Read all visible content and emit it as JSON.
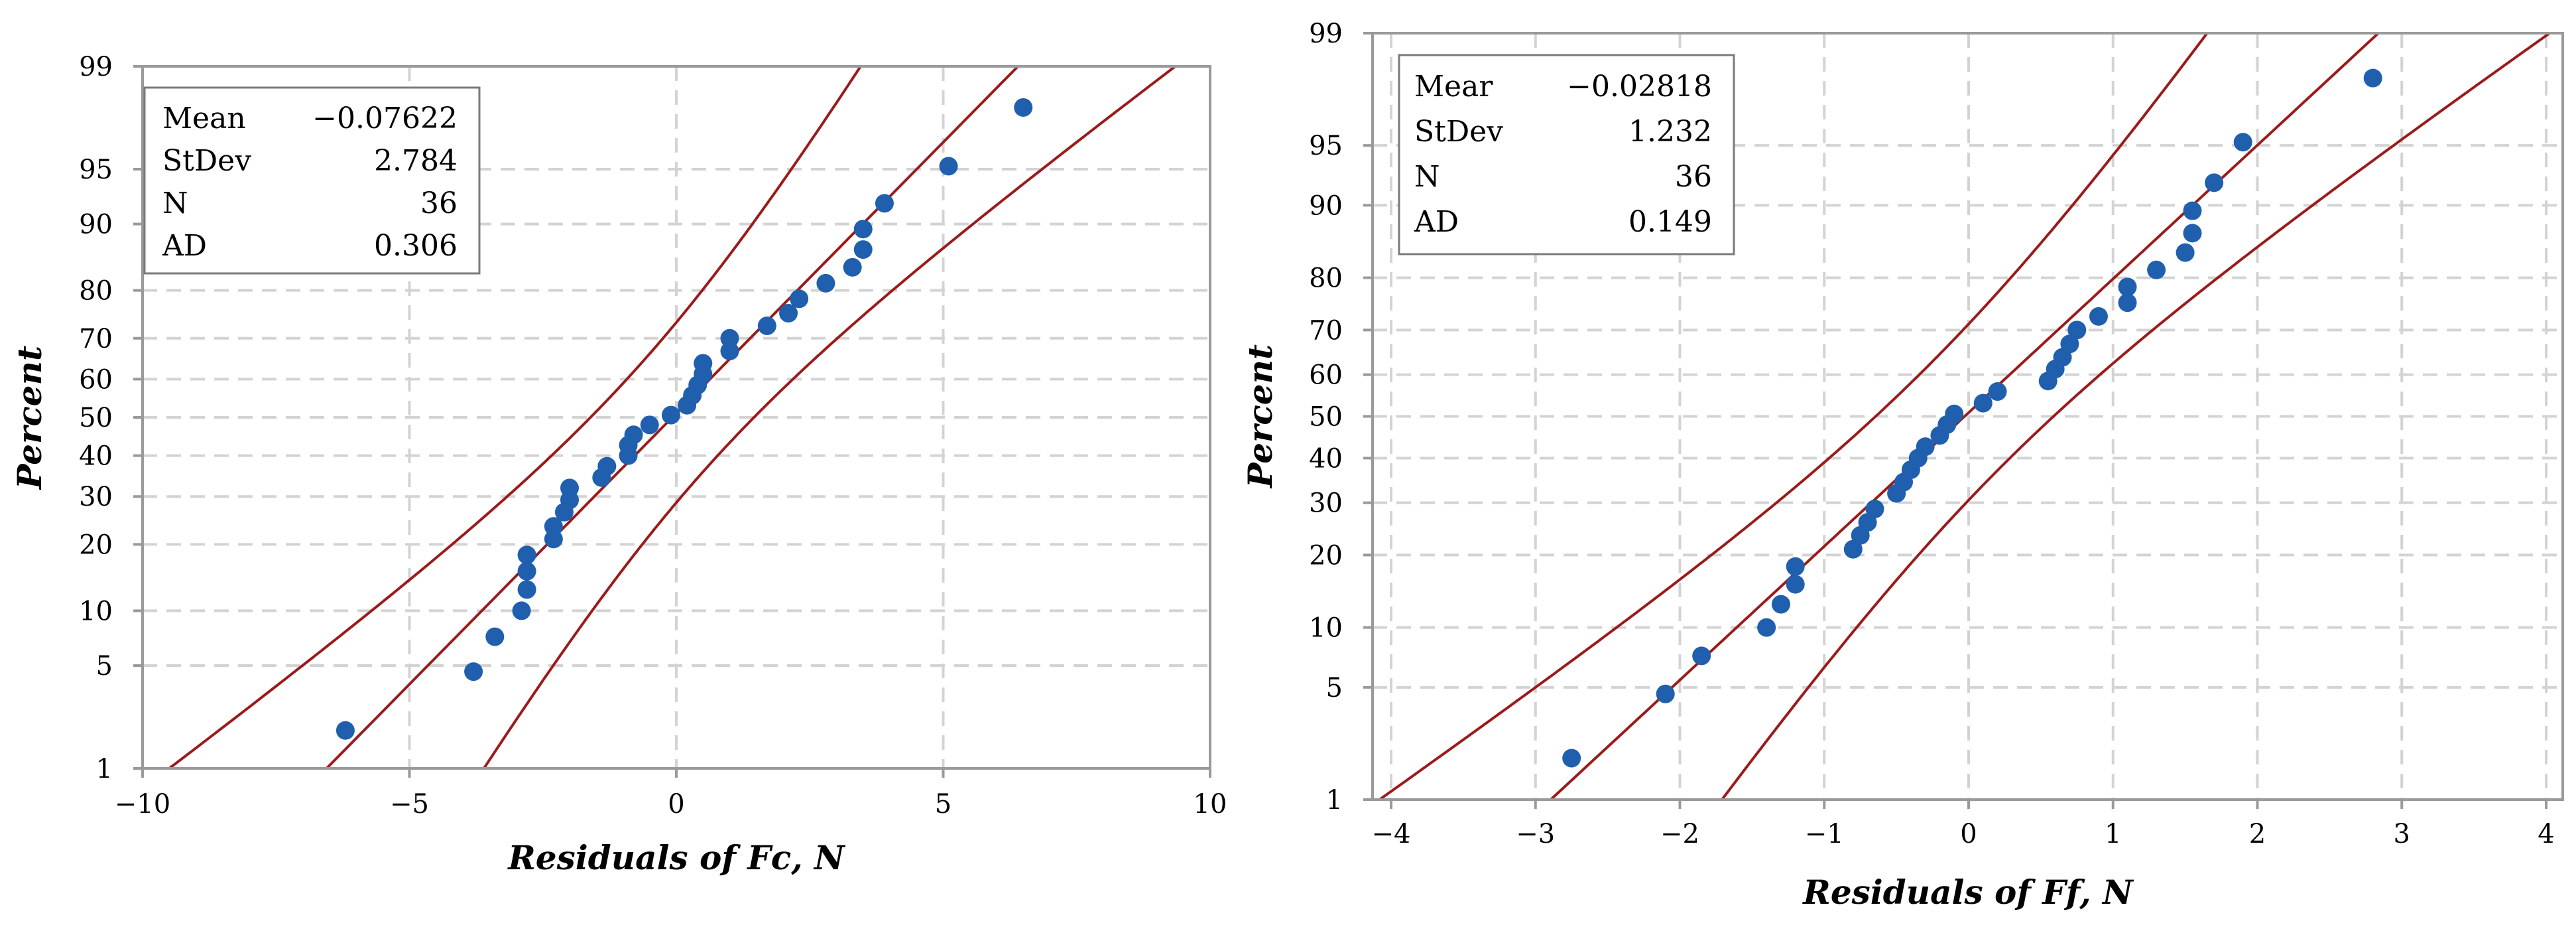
{
  "chart_data": [
    {
      "type": "scatter",
      "title": "",
      "xlabel": "Residuals of Fc, N",
      "ylabel": "Percent",
      "xlim": [
        -10,
        10
      ],
      "ylim": [
        1,
        99
      ],
      "xticks": [
        -10,
        -5,
        0,
        5,
        10
      ],
      "xtick_labels": [
        "−10",
        "−5",
        "0",
        "5",
        "10"
      ],
      "yticks": [
        1,
        5,
        10,
        20,
        30,
        40,
        50,
        60,
        70,
        80,
        90,
        95,
        99
      ],
      "grid": true,
      "legend": {
        "placement": "top-left",
        "rows": [
          {
            "label": "Mean",
            "value": "−0.07622"
          },
          {
            "label": "StDev",
            "value": "2.784"
          },
          {
            "label": "N",
            "value": "36"
          },
          {
            "label": "AD",
            "value": "0.306"
          }
        ]
      },
      "fit": {
        "mean": -0.07622,
        "sd": 2.784,
        "ci_halfwidth_sd": 0.55
      },
      "points": [
        {
          "x": -6.2,
          "y": 1.9
        },
        {
          "x": -3.8,
          "y": 4.6
        },
        {
          "x": -3.4,
          "y": 7.3
        },
        {
          "x": -2.9,
          "y": 10.0
        },
        {
          "x": -2.8,
          "y": 12.7
        },
        {
          "x": -2.8,
          "y": 15.4
        },
        {
          "x": -2.8,
          "y": 18.1
        },
        {
          "x": -2.3,
          "y": 21.0
        },
        {
          "x": -2.3,
          "y": 23.5
        },
        {
          "x": -2.1,
          "y": 26.5
        },
        {
          "x": -2.0,
          "y": 29.2
        },
        {
          "x": -2.0,
          "y": 32.0
        },
        {
          "x": -1.4,
          "y": 34.5
        },
        {
          "x": -1.3,
          "y": 37.3
        },
        {
          "x": -0.9,
          "y": 40.0
        },
        {
          "x": -0.9,
          "y": 42.7
        },
        {
          "x": -0.8,
          "y": 45.4
        },
        {
          "x": -0.5,
          "y": 48.0
        },
        {
          "x": -0.1,
          "y": 50.6
        },
        {
          "x": 0.2,
          "y": 53.2
        },
        {
          "x": 0.3,
          "y": 55.8
        },
        {
          "x": 0.4,
          "y": 58.5
        },
        {
          "x": 0.5,
          "y": 61.3
        },
        {
          "x": 0.5,
          "y": 64.0
        },
        {
          "x": 1.0,
          "y": 67.0
        },
        {
          "x": 1.0,
          "y": 70.0
        },
        {
          "x": 1.7,
          "y": 72.8
        },
        {
          "x": 2.1,
          "y": 75.5
        },
        {
          "x": 2.3,
          "y": 78.4
        },
        {
          "x": 2.8,
          "y": 81.3
        },
        {
          "x": 3.3,
          "y": 84.0
        },
        {
          "x": 3.5,
          "y": 86.7
        },
        {
          "x": 3.5,
          "y": 89.4
        },
        {
          "x": 3.9,
          "y": 92.2
        },
        {
          "x": 5.1,
          "y": 95.2
        },
        {
          "x": 6.5,
          "y": 98.0
        }
      ]
    },
    {
      "type": "scatter",
      "title": "",
      "xlabel": "Residuals of  Ff, N",
      "ylabel": "Percent",
      "xlim": [
        -4,
        4
      ],
      "ylim": [
        1,
        99
      ],
      "xticks": [
        -4,
        -3,
        -2,
        -1,
        0,
        1,
        2,
        3,
        4
      ],
      "xtick_labels": [
        "−4",
        "−3",
        "−2",
        "−1",
        "0",
        "1",
        "2",
        "3",
        "4"
      ],
      "yticks": [
        1,
        5,
        10,
        20,
        30,
        40,
        50,
        60,
        70,
        80,
        90,
        95,
        99
      ],
      "grid": true,
      "legend": {
        "placement": "top-left",
        "rows": [
          {
            "label": "Mear",
            "value": "−0.02818"
          },
          {
            "label": "StDev",
            "value": "1.232"
          },
          {
            "label": "N",
            "value": "36"
          },
          {
            "label": "AD",
            "value": "0.149"
          }
        ]
      },
      "fit": {
        "mean": -0.02818,
        "sd": 1.232,
        "ci_halfwidth_sd": 0.5
      },
      "points": [
        {
          "x": -2.75,
          "y": 1.9
        },
        {
          "x": -2.1,
          "y": 4.6
        },
        {
          "x": -1.85,
          "y": 7.3
        },
        {
          "x": -1.4,
          "y": 10.0
        },
        {
          "x": -1.3,
          "y": 12.7
        },
        {
          "x": -1.2,
          "y": 15.4
        },
        {
          "x": -1.2,
          "y": 18.1
        },
        {
          "x": -0.8,
          "y": 21.0
        },
        {
          "x": -0.75,
          "y": 23.5
        },
        {
          "x": -0.7,
          "y": 26.0
        },
        {
          "x": -0.65,
          "y": 28.7
        },
        {
          "x": -0.5,
          "y": 32.0
        },
        {
          "x": -0.45,
          "y": 34.5
        },
        {
          "x": -0.4,
          "y": 37.3
        },
        {
          "x": -0.35,
          "y": 40.0
        },
        {
          "x": -0.3,
          "y": 42.7
        },
        {
          "x": -0.2,
          "y": 45.4
        },
        {
          "x": -0.15,
          "y": 48.0
        },
        {
          "x": -0.1,
          "y": 50.6
        },
        {
          "x": 0.1,
          "y": 53.2
        },
        {
          "x": 0.2,
          "y": 56.0
        },
        {
          "x": 0.55,
          "y": 58.5
        },
        {
          "x": 0.6,
          "y": 61.3
        },
        {
          "x": 0.65,
          "y": 64.0
        },
        {
          "x": 0.7,
          "y": 67.0
        },
        {
          "x": 0.75,
          "y": 70.0
        },
        {
          "x": 0.9,
          "y": 72.8
        },
        {
          "x": 1.1,
          "y": 75.5
        },
        {
          "x": 1.1,
          "y": 78.4
        },
        {
          "x": 1.3,
          "y": 81.3
        },
        {
          "x": 1.5,
          "y": 84.0
        },
        {
          "x": 1.55,
          "y": 86.7
        },
        {
          "x": 1.55,
          "y": 89.4
        },
        {
          "x": 1.7,
          "y": 92.2
        },
        {
          "x": 1.9,
          "y": 95.2
        },
        {
          "x": 2.8,
          "y": 98.0
        }
      ]
    }
  ]
}
